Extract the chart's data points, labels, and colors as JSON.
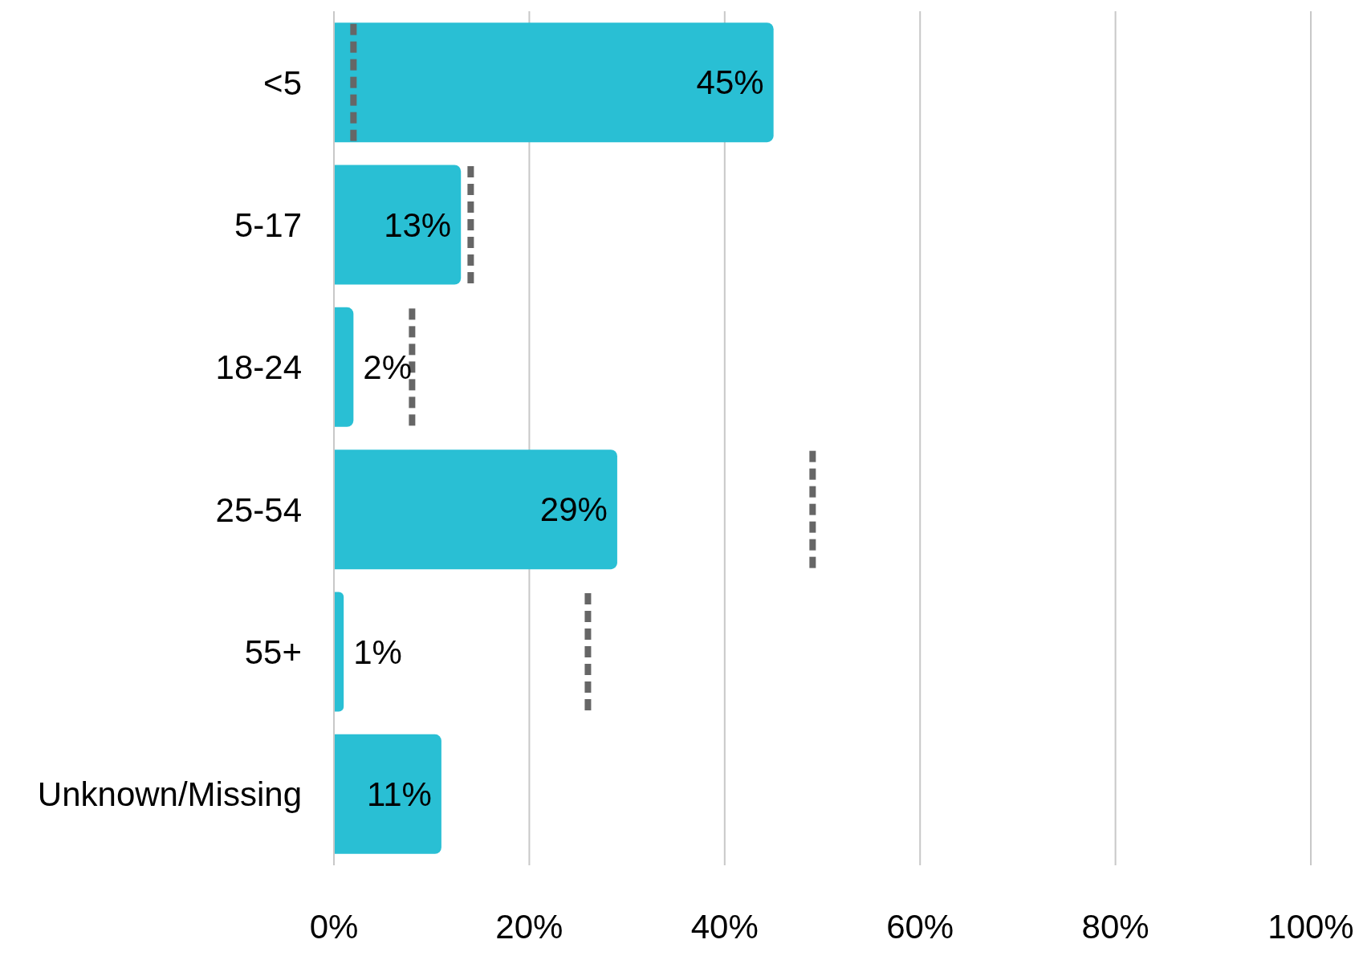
{
  "chart_data": {
    "type": "bar",
    "orientation": "horizontal",
    "categories": [
      "<5",
      "5-17",
      "18-24",
      "25-54",
      "55+",
      "Unknown/Missing"
    ],
    "series": [
      {
        "type": "bar",
        "color": "#29bfd4",
        "values": [
          45,
          13,
          2,
          29,
          1,
          11
        ],
        "value_labels": [
          "45%",
          "13%",
          "2%",
          "29%",
          "1%",
          "11%"
        ]
      },
      {
        "type": "scatter",
        "color": "#666666",
        "line_style": "dashed",
        "values": [
          2,
          14,
          8,
          49,
          26,
          null
        ]
      }
    ],
    "xlim": [
      0,
      100
    ],
    "xticks": [
      {
        "value": 0,
        "label": "0%"
      },
      {
        "value": 20,
        "label": "20%"
      },
      {
        "value": 40,
        "label": "40%"
      },
      {
        "value": 60,
        "label": "60%"
      },
      {
        "value": 80,
        "label": "80%"
      },
      {
        "value": 100,
        "label": "100%"
      }
    ],
    "grid": "x"
  }
}
